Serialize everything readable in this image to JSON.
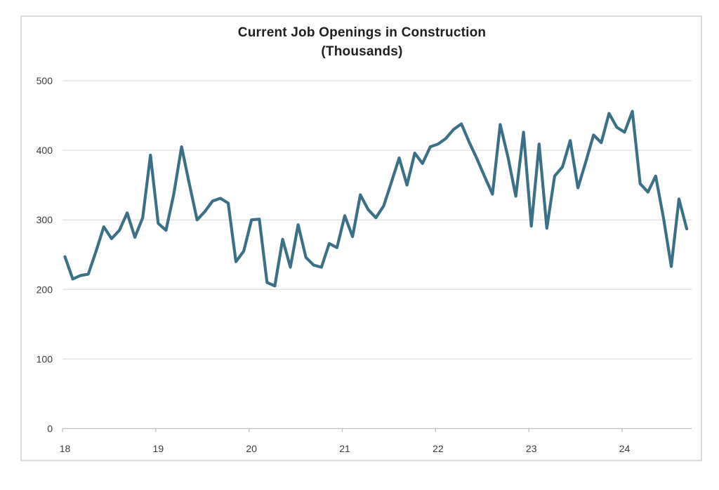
{
  "page": {
    "background": "#ffffff"
  },
  "chart_data": {
    "type": "line",
    "title": "Current Job Openings in Construction",
    "subtitle": "(Thousands)",
    "legend": "none",
    "grid": "horizontal-only",
    "line_color": "#3c7086",
    "x_axis": {
      "tick_labels": [
        "18",
        "19",
        "20",
        "21",
        "22",
        "23",
        "24"
      ],
      "note": "years 2018-2024, monthly points"
    },
    "y_axis": {
      "ticks": [
        0,
        100,
        200,
        300,
        400,
        500
      ],
      "range": [
        0,
        500
      ]
    },
    "series": [
      {
        "name": "Current Job Openings in Construction (Thousands)",
        "start": "2018-01",
        "frequency": "monthly",
        "values": [
          247,
          215,
          220,
          222,
          255,
          290,
          273,
          285,
          310,
          275,
          303,
          393,
          295,
          285,
          337,
          405,
          352,
          300,
          312,
          327,
          331,
          324,
          240,
          255,
          300,
          301,
          210,
          205,
          272,
          232,
          293,
          246,
          235,
          232,
          266,
          260,
          306,
          276,
          336,
          315,
          303,
          320,
          354,
          389,
          350,
          396,
          381,
          405,
          409,
          417,
          430,
          438,
          412,
          388,
          362,
          337,
          437,
          390,
          334,
          426,
          291,
          409,
          288,
          363,
          376,
          414,
          346,
          383,
          422,
          411,
          453,
          433,
          426,
          456,
          352,
          340,
          363,
          303,
          233,
          330,
          287
        ]
      }
    ]
  }
}
